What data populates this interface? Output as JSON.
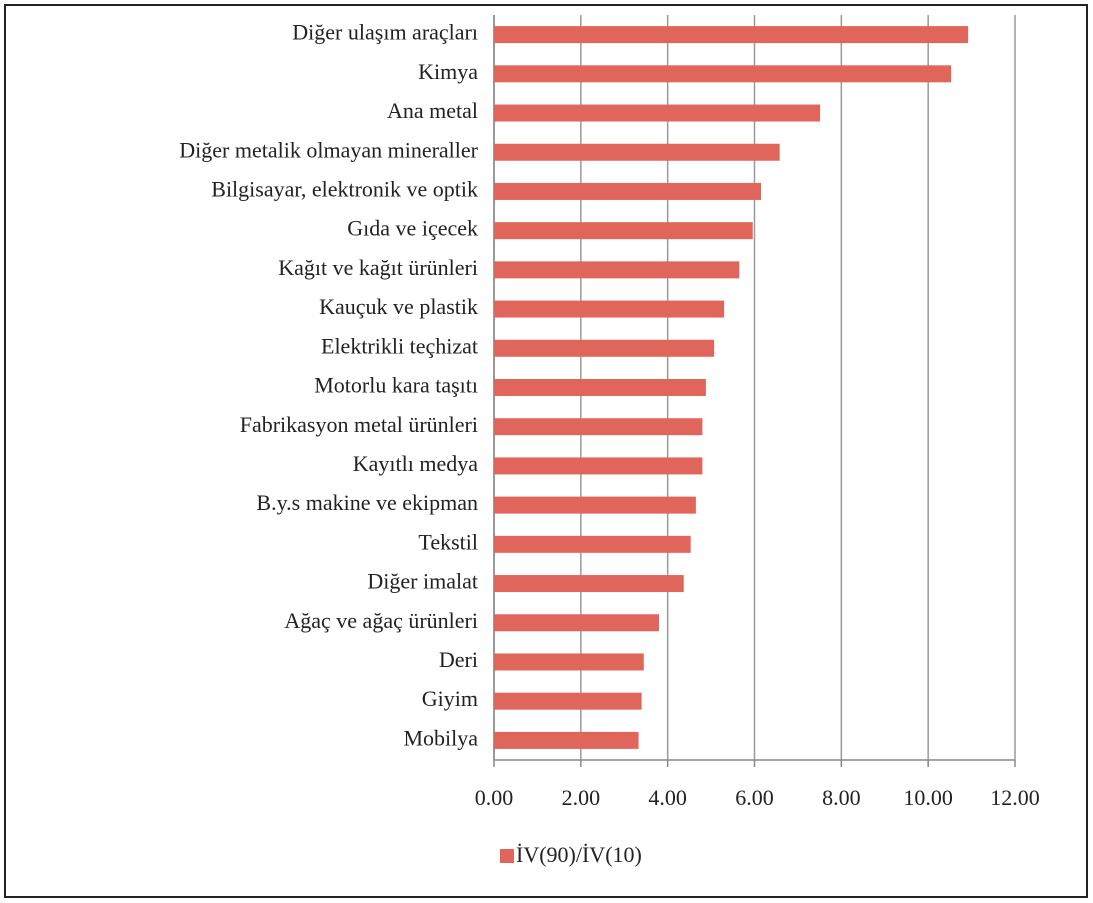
{
  "chart_data": {
    "type": "barh",
    "categories": [
      "Diğer ulaşım araçları",
      "Kimya",
      "Ana metal",
      "Diğer metalik olmayan mineraller",
      "Bilgisayar, elektronik ve optik",
      "Gıda ve içecek",
      "Kağıt ve kağıt ürünleri",
      "Kauçuk ve plastik",
      "Elektrikli teçhizat",
      "Motorlu kara taşıtı",
      "Fabrikasyon metal ürünleri",
      "Kayıtlı medya",
      "B.y.s makine ve ekipman",
      "Tekstil",
      "Diğer imalat",
      "Ağaç ve ağaç ürünleri",
      "Deri",
      "Giyim",
      "Mobilya"
    ],
    "series": [
      {
        "name": "İV(90)/İV(10)",
        "color": "#e0665c",
        "values": [
          10.92,
          10.53,
          7.51,
          6.58,
          6.15,
          5.96,
          5.65,
          5.3,
          5.07,
          4.88,
          4.8,
          4.8,
          4.65,
          4.53,
          4.37,
          3.8,
          3.45,
          3.4,
          3.33
        ]
      }
    ],
    "xlim": [
      0,
      12
    ],
    "xticks": [
      {
        "value": 0,
        "label": "0.00"
      },
      {
        "value": 2,
        "label": "2.00"
      },
      {
        "value": 4,
        "label": "4.00"
      },
      {
        "value": 6,
        "label": "6.00"
      },
      {
        "value": 8,
        "label": "8.00"
      },
      {
        "value": 10,
        "label": "10.00"
      },
      {
        "value": 12,
        "label": "12.00"
      }
    ],
    "grid": true
  }
}
